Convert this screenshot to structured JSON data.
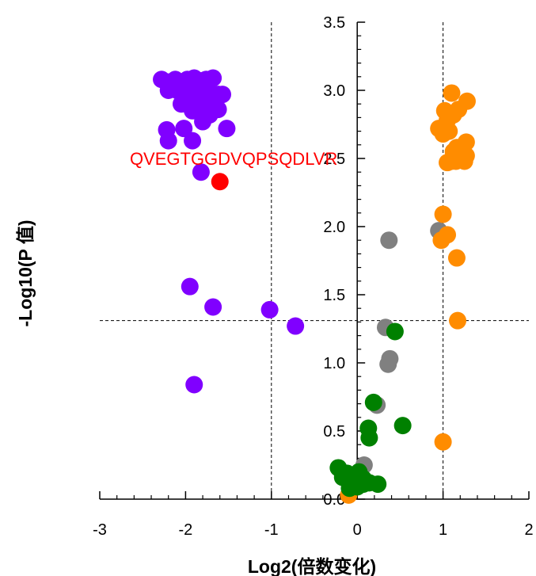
{
  "chart_data": {
    "type": "scatter",
    "title": "",
    "xlabel": "Log2(倍数变化)",
    "ylabel": "-Log10(P 值)",
    "xlim": [
      -3,
      2
    ],
    "ylim": [
      0,
      3.5
    ],
    "x_ticks": [
      -3,
      -2,
      -1,
      0,
      1,
      2
    ],
    "y_ticks": [
      0.0,
      0.5,
      1.0,
      1.5,
      2.0,
      2.5,
      3.0,
      3.5
    ],
    "x_tick_labels": [
      "-3",
      "-2",
      "-1",
      "0",
      "1",
      "2"
    ],
    "y_tick_labels": [
      "0.0",
      "0.5",
      "1.0",
      "1.5",
      "2.0",
      "2.5",
      "3.0",
      "3.5"
    ],
    "threshold_lines": {
      "x": [
        -1,
        1
      ],
      "y": 1.31
    },
    "grid": false,
    "legend": "none",
    "colors": {
      "down": "#8000ff",
      "up": "#ff8c00",
      "not_significant": "#808080",
      "small_change": "#008000",
      "highlight": "#ff0000"
    },
    "series": [
      {
        "color": "#808080",
        "points": [
          [
            0.37,
            1.9
          ],
          [
            0.95,
            1.97
          ],
          [
            0.33,
            1.26
          ],
          [
            0.38,
            1.03
          ],
          [
            0.36,
            0.99
          ],
          [
            0.23,
            0.69
          ],
          [
            0.08,
            0.25
          ]
        ]
      },
      {
        "color": "#8000ff",
        "points": [
          [
            -2.28,
            3.08
          ],
          [
            -2.2,
            3.06
          ],
          [
            -2.12,
            3.08
          ],
          [
            -2.05,
            3.05
          ],
          [
            -1.98,
            3.08
          ],
          [
            -1.9,
            3.09
          ],
          [
            -1.83,
            3.07
          ],
          [
            -1.76,
            3.08
          ],
          [
            -1.68,
            3.09
          ],
          [
            -2.2,
            3.0
          ],
          [
            -2.1,
            3.0
          ],
          [
            -2.02,
            2.98
          ],
          [
            -1.93,
            3.0
          ],
          [
            -1.85,
            2.97
          ],
          [
            -1.75,
            3.0
          ],
          [
            -1.62,
            2.97
          ],
          [
            -1.57,
            2.97
          ],
          [
            -2.05,
            2.9
          ],
          [
            -1.95,
            2.93
          ],
          [
            -1.88,
            2.88
          ],
          [
            -1.8,
            2.92
          ],
          [
            -1.7,
            2.9
          ],
          [
            -1.92,
            2.85
          ],
          [
            -1.82,
            2.83
          ],
          [
            -1.72,
            2.82
          ],
          [
            -1.62,
            2.86
          ],
          [
            -1.8,
            2.77
          ],
          [
            -2.22,
            2.71
          ],
          [
            -2.02,
            2.72
          ],
          [
            -1.52,
            2.72
          ],
          [
            -2.2,
            2.63
          ],
          [
            -1.92,
            2.63
          ],
          [
            -1.82,
            2.4
          ],
          [
            -1.95,
            1.56
          ],
          [
            -1.68,
            1.41
          ],
          [
            -1.02,
            1.39
          ],
          [
            -0.72,
            1.27
          ],
          [
            -1.9,
            0.84
          ]
        ]
      },
      {
        "color": "#ff8c00",
        "points": [
          [
            1.1,
            2.98
          ],
          [
            1.28,
            2.92
          ],
          [
            1.02,
            2.85
          ],
          [
            1.12,
            2.82
          ],
          [
            1.18,
            2.86
          ],
          [
            1.05,
            2.78
          ],
          [
            0.95,
            2.72
          ],
          [
            1.0,
            2.68
          ],
          [
            1.07,
            2.7
          ],
          [
            1.27,
            2.62
          ],
          [
            1.16,
            2.58
          ],
          [
            1.22,
            2.57
          ],
          [
            1.12,
            2.55
          ],
          [
            1.18,
            2.52
          ],
          [
            1.27,
            2.52
          ],
          [
            1.05,
            2.47
          ],
          [
            1.1,
            2.48
          ],
          [
            1.15,
            2.48
          ],
          [
            1.25,
            2.48
          ],
          [
            1.0,
            2.09
          ],
          [
            1.05,
            1.94
          ],
          [
            0.98,
            1.9
          ],
          [
            1.16,
            1.77
          ],
          [
            1.17,
            1.31
          ],
          [
            1.0,
            0.42
          ],
          [
            -0.1,
            0.03
          ]
        ]
      },
      {
        "color": "#008000",
        "points": [
          [
            0.44,
            1.23
          ],
          [
            0.19,
            0.71
          ],
          [
            0.13,
            0.52
          ],
          [
            0.14,
            0.45
          ],
          [
            0.53,
            0.54
          ],
          [
            -0.22,
            0.23
          ],
          [
            -0.17,
            0.16
          ],
          [
            -0.12,
            0.19
          ],
          [
            -0.05,
            0.16
          ],
          [
            0.02,
            0.2
          ],
          [
            0.07,
            0.15
          ],
          [
            0.14,
            0.12
          ],
          [
            0.24,
            0.11
          ],
          [
            -0.09,
            0.08
          ],
          [
            0.0,
            0.09
          ],
          [
            0.07,
            0.11
          ]
        ]
      },
      {
        "color": "#ff0000",
        "points": [
          [
            -1.6,
            2.33
          ]
        ]
      }
    ],
    "annotations": [
      {
        "text": "QVEGTGGDVQPSQDLVR",
        "x": -2.65,
        "y": 2.5,
        "color": "#ff0000"
      }
    ]
  }
}
